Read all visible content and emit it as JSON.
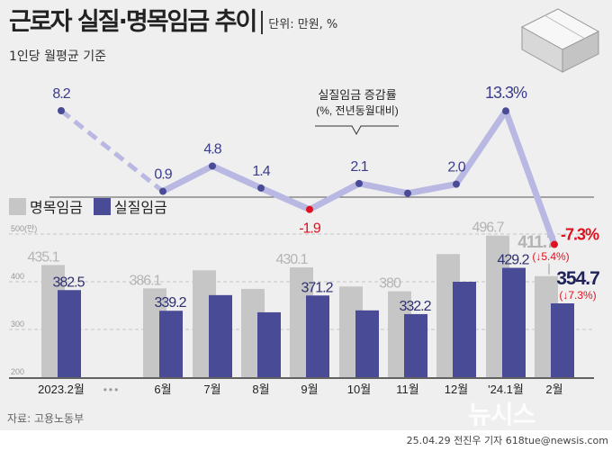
{
  "header": {
    "title": "근로자 실질·명목임금 추이",
    "unit": "단위: 만원, %",
    "subtitle": "1인당 월평균 기준"
  },
  "legend": [
    {
      "label": "명목임금",
      "color": "#c6c6c6"
    },
    {
      "label": "실질임금",
      "color": "#4a4b97"
    }
  ],
  "annotation": {
    "line1": "실질임금 증감률",
    "line2": "(%, 전년동월대비)"
  },
  "footer": {
    "source": "자료: 고용노동부",
    "byline": "25.04.29 전진우 기자 618tue@newsis.com",
    "logo": "뉴시스"
  },
  "colors": {
    "nominal": "#c6c6c6",
    "real": "#4a4b97",
    "line": "#b8b8e2",
    "dot": "#4a4b97",
    "negative": "#e0101e",
    "label_gray": "#b4b4b4"
  },
  "chart_data": [
    {
      "type": "line",
      "title": "실질임금 증감률 (%, 전년동월대비)",
      "categories": [
        "2023.2월",
        "6월",
        "7월",
        "8월",
        "9월",
        "10월",
        "11월",
        "12월",
        "'24.1월",
        "2월"
      ],
      "values": [
        8.2,
        0.9,
        4.8,
        1.4,
        -1.9,
        2.1,
        0.6,
        2.0,
        13.3,
        -7.3
      ],
      "labels": [
        "8.2",
        "0.9",
        "4.8",
        "1.4",
        "-1.9",
        "2.1",
        "",
        "2.0",
        "13.3%",
        "-7.3%"
      ],
      "gap_after_first": true,
      "zero_line": true
    },
    {
      "type": "bar",
      "categories": [
        "2023.2월",
        "6월",
        "7월",
        "8월",
        "9월",
        "10월",
        "11월",
        "12월",
        "'24.1월",
        "2월"
      ],
      "separator": "•••",
      "series": [
        {
          "name": "명목임금",
          "values": [
            435.1,
            386.1,
            424,
            385,
            430.1,
            390,
            380,
            458,
            496.7,
            411.7
          ],
          "labels": [
            "435.1",
            "386.1",
            "",
            "",
            "430.1",
            "",
            "380",
            "",
            "496.7",
            "411.7"
          ]
        },
        {
          "name": "실질임금",
          "values": [
            382.5,
            339.2,
            372,
            336,
            371.2,
            340,
            332.2,
            400,
            429.2,
            354.7
          ],
          "labels": [
            "382.5",
            "339.2",
            "",
            "",
            "371.2",
            "",
            "332.2",
            "",
            "429.2",
            "354.7"
          ]
        }
      ],
      "change_notes": {
        "nominal": "(↓5.4%)",
        "real": "(↓7.3%)"
      },
      "yticks": [
        "500(만)",
        "400",
        "300",
        "200"
      ],
      "ylim": [
        200,
        500
      ],
      "grid": true
    }
  ]
}
